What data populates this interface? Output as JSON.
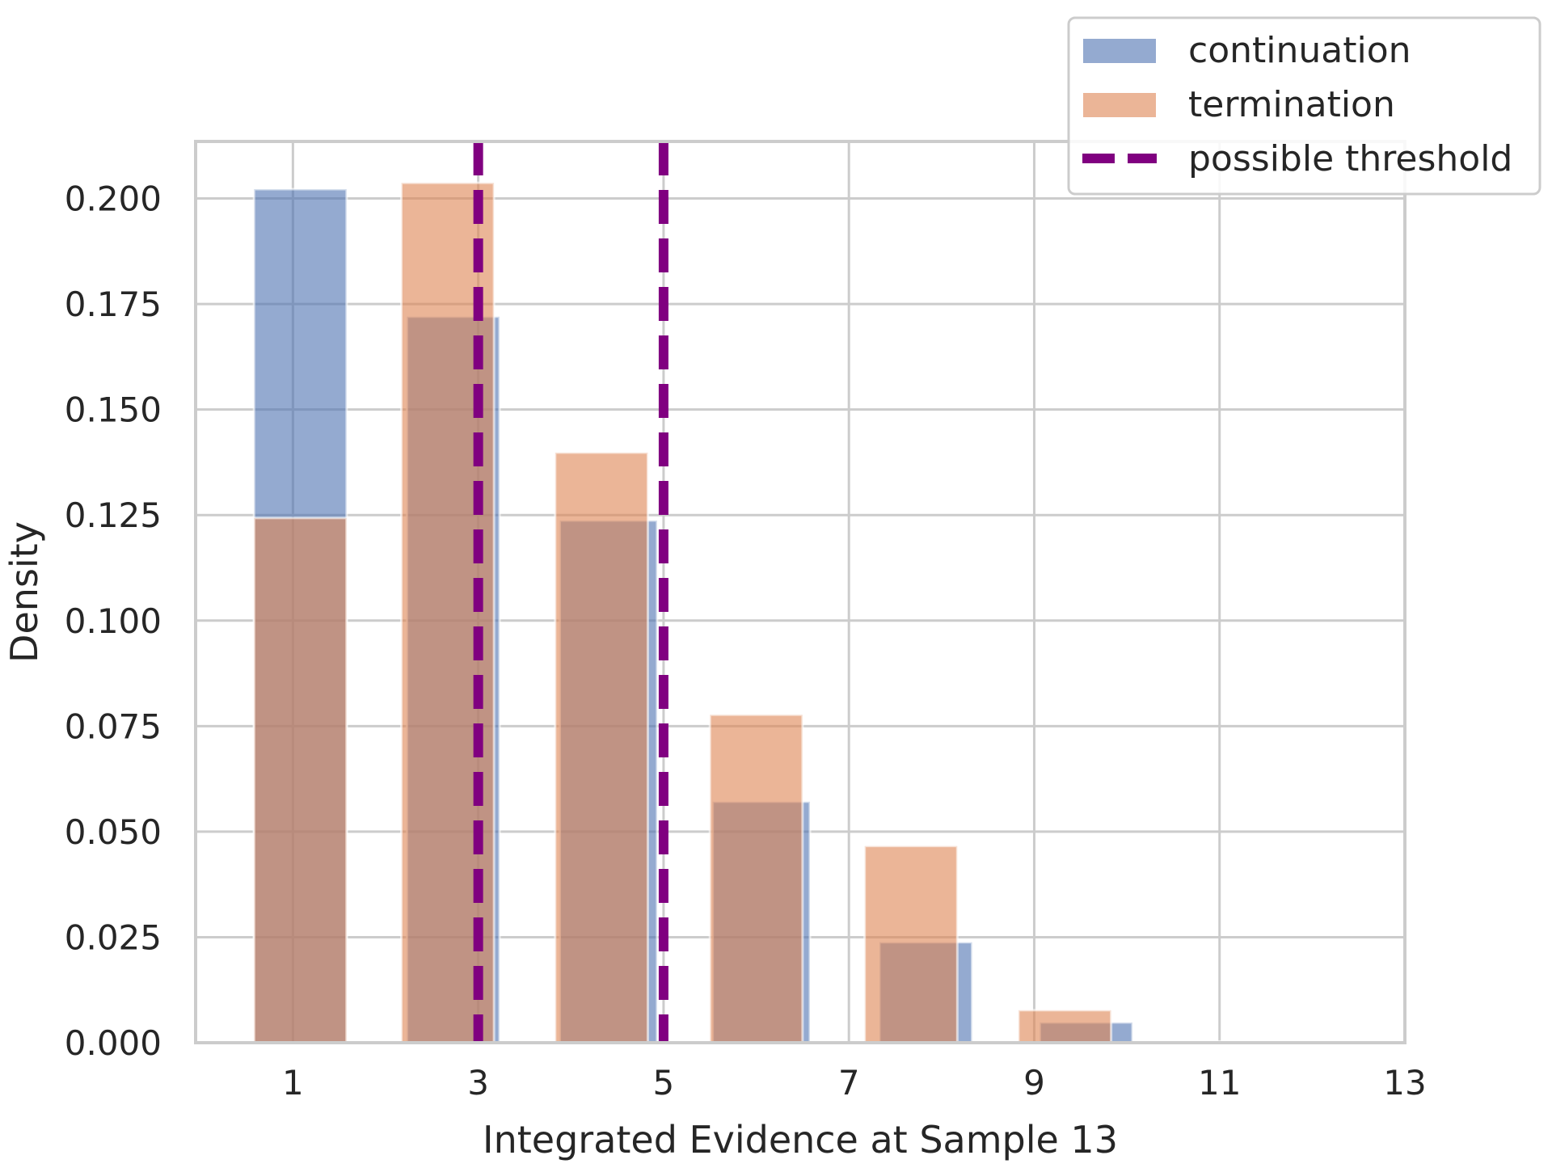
{
  "chart_data": {
    "type": "bar",
    "xlabel": "Integrated Evidence at Sample 13",
    "ylabel": "Density",
    "xlim": [
      -0.05,
      13.0
    ],
    "ylim": [
      0.0,
      0.2135
    ],
    "xticks": [
      1,
      3,
      5,
      7,
      9,
      11,
      13
    ],
    "xtick_labels": [
      "1",
      "3",
      "5",
      "7",
      "9",
      "11",
      "13"
    ],
    "yticks": [
      0.0,
      0.025,
      0.05,
      0.075,
      0.1,
      0.125,
      0.15,
      0.175,
      0.2
    ],
    "ytick_labels": [
      "0.000",
      "0.025",
      "0.050",
      "0.075",
      "0.100",
      "0.125",
      "0.150",
      "0.175",
      "0.200"
    ],
    "grid": true,
    "legend_position": "top-right",
    "series": [
      {
        "name": "continuation",
        "color": "#4c72b0",
        "bins": [
          {
            "x0": 0.58,
            "x1": 1.58,
            "value": 0.2022
          },
          {
            "x0": 2.23,
            "x1": 3.23,
            "value": 0.172
          },
          {
            "x0": 3.88,
            "x1": 4.93,
            "value": 0.1237
          },
          {
            "x0": 5.53,
            "x1": 6.58,
            "value": 0.0571
          },
          {
            "x0": 7.33,
            "x1": 8.33,
            "value": 0.0238
          },
          {
            "x0": 9.06,
            "x1": 10.06,
            "value": 0.0048
          },
          {
            "x0": 10.78,
            "x1": 11.78,
            "value": 0.0003
          }
        ]
      },
      {
        "name": "termination",
        "color": "#dd8452",
        "bins": [
          {
            "x0": 0.58,
            "x1": 1.58,
            "value": 0.1243
          },
          {
            "x0": 2.17,
            "x1": 3.17,
            "value": 0.2037
          },
          {
            "x0": 3.83,
            "x1": 4.83,
            "value": 0.1398
          },
          {
            "x0": 5.5,
            "x1": 6.5,
            "value": 0.0777
          },
          {
            "x0": 7.17,
            "x1": 8.17,
            "value": 0.0466
          },
          {
            "x0": 8.83,
            "x1": 9.83,
            "value": 0.0077
          }
        ]
      }
    ],
    "threshold": {
      "name": "possible threshold",
      "color": "#800080",
      "x": [
        3,
        5
      ]
    }
  }
}
